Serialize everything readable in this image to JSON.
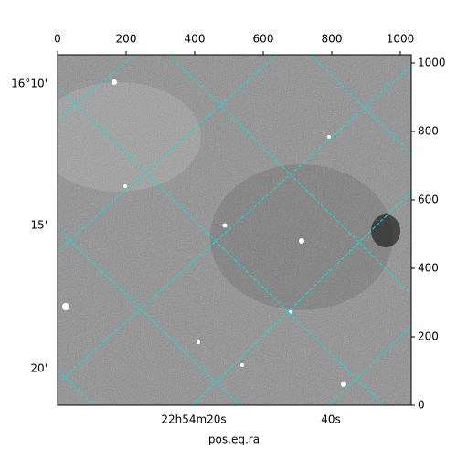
{
  "chart_data": {
    "type": "image",
    "xlim": [
      0,
      1032
    ],
    "xticks": [
      0,
      200,
      400,
      600,
      800,
      1000
    ],
    "ylim": [
      0,
      1024
    ],
    "yticks": [
      0,
      200,
      400,
      600,
      800,
      1000
    ],
    "ra_tick_labels": [
      "22h54m20s",
      "40s"
    ],
    "dec_tick_labels": [
      "16°10'",
      "15'",
      "20'"
    ],
    "xlabel": "pos.eq.ra",
    "grid_color": "#00e5e5"
  }
}
